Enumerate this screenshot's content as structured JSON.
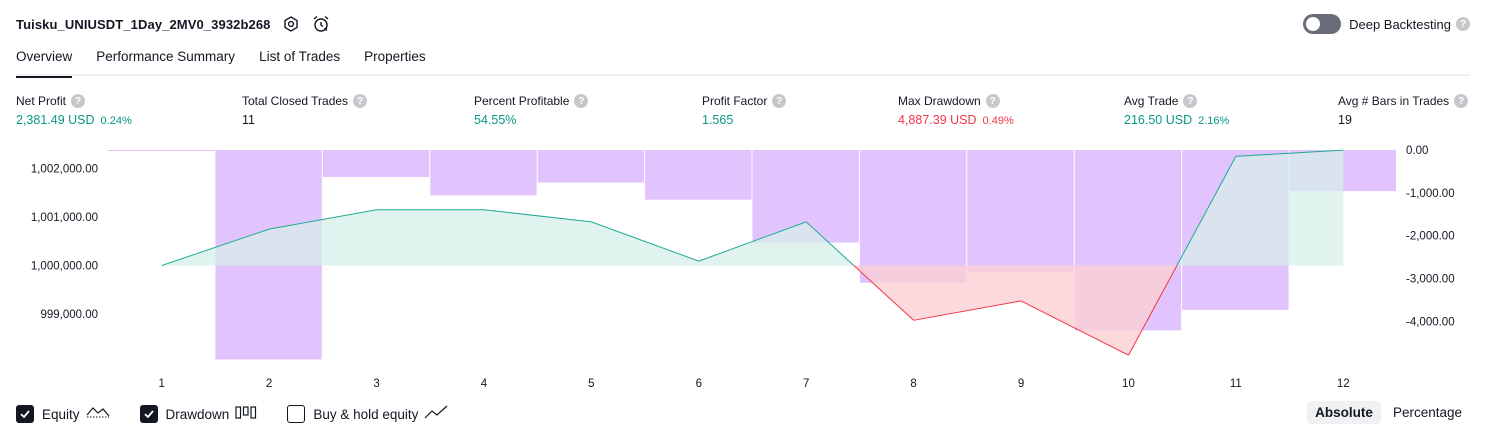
{
  "header": {
    "title": "Tuisku_UNIUSDT_1Day_2MV0_3932b268",
    "deep_backtesting_label": "Deep Backtesting",
    "help_glyph": "?"
  },
  "tabs": [
    {
      "label": "Overview",
      "active": true
    },
    {
      "label": "Performance Summary",
      "active": false
    },
    {
      "label": "List of Trades",
      "active": false
    },
    {
      "label": "Properties",
      "active": false
    }
  ],
  "metrics": [
    {
      "label": "Net Profit",
      "value": "2,381.49 USD",
      "sub": "0.24%",
      "color": "green"
    },
    {
      "label": "Total Closed Trades",
      "value": "11",
      "sub": "",
      "color": "dark"
    },
    {
      "label": "Percent Profitable",
      "value": "54.55%",
      "sub": "",
      "color": "green"
    },
    {
      "label": "Profit Factor",
      "value": "1.565",
      "sub": "",
      "color": "green"
    },
    {
      "label": "Max Drawdown",
      "value": "4,887.39 USD",
      "sub": "0.49%",
      "color": "red"
    },
    {
      "label": "Avg Trade",
      "value": "216.50 USD",
      "sub": "2.16%",
      "color": "green"
    },
    {
      "label": "Avg # Bars in Trades",
      "value": "19",
      "sub": "",
      "color": "dark"
    }
  ],
  "chart_data": {
    "type": "line",
    "x": [
      1,
      2,
      3,
      4,
      5,
      6,
      7,
      8,
      9,
      10,
      11,
      12
    ],
    "left_axis": {
      "ticks": [
        "1,002,000.00",
        "1,001,000.00",
        "1,000,000.00",
        "999,000.00"
      ],
      "tick_values": [
        1002000,
        1001000,
        1000000,
        999000
      ],
      "range": [
        998000,
        1002400
      ]
    },
    "right_axis": {
      "ticks": [
        "0.00",
        "-1,000.00",
        "-2,000.00",
        "-3,000.00",
        "-4,000.00"
      ],
      "tick_values": [
        0,
        -1000,
        -2000,
        -3000,
        -4000
      ],
      "range": [
        -4900,
        0
      ]
    },
    "series": [
      {
        "name": "Equity",
        "kind": "line",
        "axis": "left",
        "x": [
          1,
          2,
          3,
          4,
          5,
          6,
          7,
          8,
          9,
          10,
          11,
          12
        ],
        "values": [
          1000000,
          1000750,
          1001150,
          1001150,
          1000900,
          1000090,
          1000900,
          998870,
          999270,
          998150,
          1002250,
          1002380
        ]
      },
      {
        "name": "Drawdown",
        "kind": "bar",
        "axis": "right",
        "x": [
          1,
          2,
          3,
          4,
          5,
          6,
          7,
          8,
          9,
          10,
          11,
          12
        ],
        "values": [
          -5,
          -4887,
          -630,
          -1060,
          -760,
          -1160,
          -2160,
          -3100,
          -2840,
          -4210,
          -3730,
          -960
        ]
      }
    ],
    "colors": {
      "equity_line": "#22ab94",
      "equity_fill": "#d6efea",
      "drawdown_bar": "#e1c3fd",
      "loss_line": "#f23645",
      "loss_fill": "#fbd0d3",
      "bar_divider": "#ffffff"
    }
  },
  "legend": [
    {
      "label": "Equity",
      "checked": true,
      "icon": "equity-line-icon"
    },
    {
      "label": "Drawdown",
      "checked": true,
      "icon": "drawdown-bars-icon"
    },
    {
      "label": "Buy & hold equity",
      "checked": false,
      "icon": "buy-hold-line-icon"
    }
  ],
  "mode": {
    "absolute_label": "Absolute",
    "percentage_label": "Percentage",
    "selected": "absolute"
  }
}
